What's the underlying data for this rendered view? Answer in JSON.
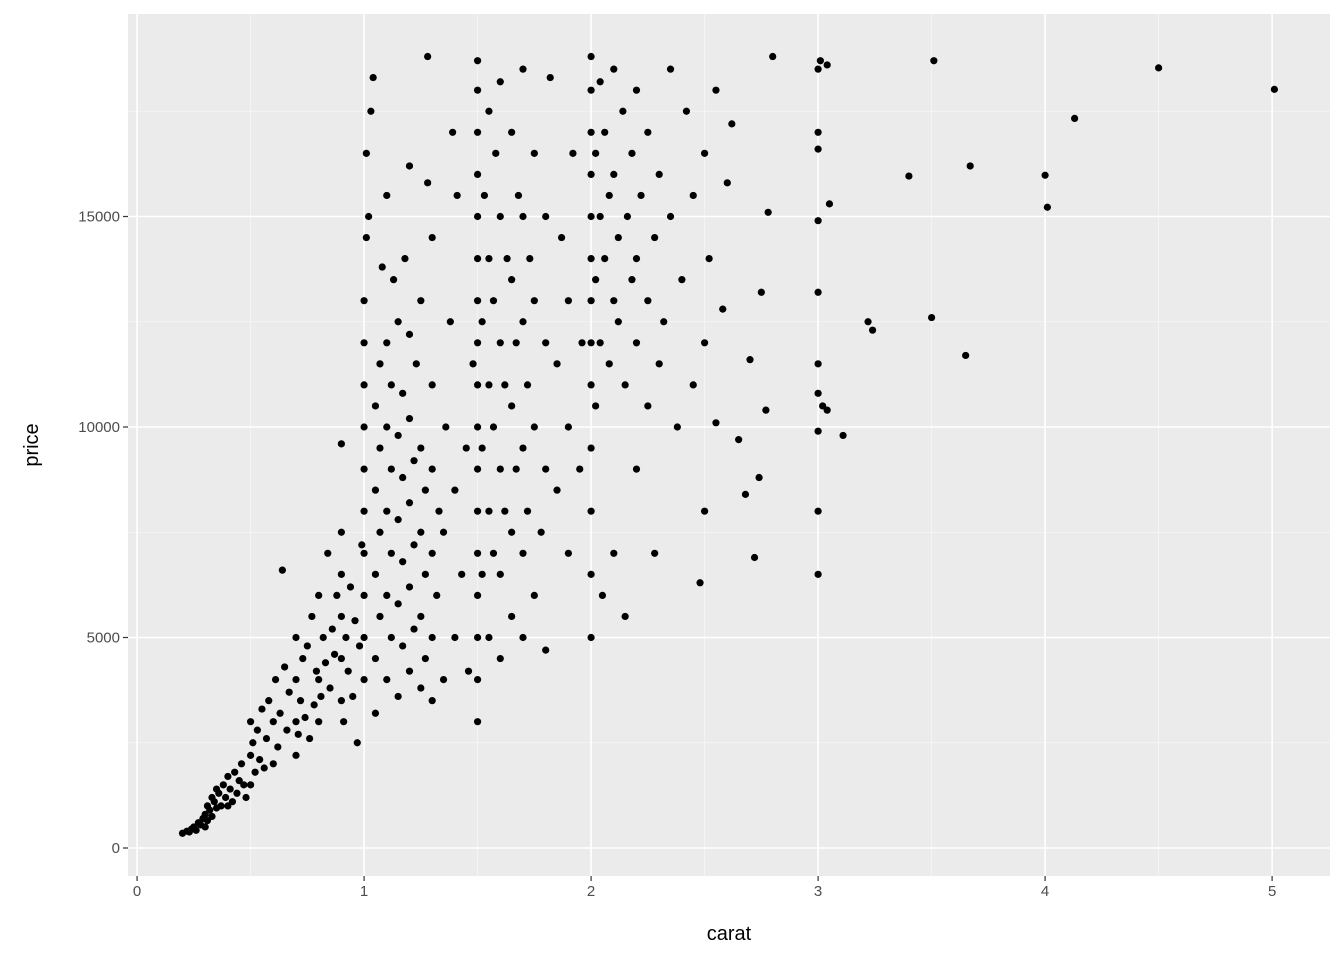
{
  "chart_data": {
    "type": "scatter",
    "title": "",
    "xlabel": "carat",
    "ylabel": "price",
    "xlim": [
      -0.04,
      5.255
    ],
    "ylim": [
      -665,
      19810
    ],
    "x_ticks": [
      0,
      1,
      2,
      3,
      4,
      5
    ],
    "x_tick_labels": [
      "0",
      "1",
      "2",
      "3",
      "4",
      "5"
    ],
    "y_ticks": [
      0,
      5000,
      10000,
      15000
    ],
    "y_tick_labels": [
      "0",
      "5000",
      "10000",
      "15000"
    ],
    "grid": true,
    "colors": {
      "panel": "#EBEBEB",
      "grid": "#FFFFFF",
      "point": "#000000"
    },
    "points": [
      [
        0.2,
        350
      ],
      [
        0.22,
        400
      ],
      [
        0.23,
        380
      ],
      [
        0.24,
        450
      ],
      [
        0.25,
        500
      ],
      [
        0.26,
        420
      ],
      [
        0.27,
        600
      ],
      [
        0.28,
        550
      ],
      [
        0.29,
        700
      ],
      [
        0.3,
        500
      ],
      [
        0.3,
        800
      ],
      [
        0.31,
        650
      ],
      [
        0.31,
        1000
      ],
      [
        0.32,
        900
      ],
      [
        0.33,
        750
      ],
      [
        0.33,
        1200
      ],
      [
        0.34,
        1100
      ],
      [
        0.35,
        950
      ],
      [
        0.35,
        1400
      ],
      [
        0.36,
        1300
      ],
      [
        0.37,
        1000
      ],
      [
        0.38,
        1500
      ],
      [
        0.39,
        1200
      ],
      [
        0.4,
        1000
      ],
      [
        0.4,
        1700
      ],
      [
        0.41,
        1400
      ],
      [
        0.42,
        1100
      ],
      [
        0.43,
        1800
      ],
      [
        0.44,
        1300
      ],
      [
        0.45,
        1600
      ],
      [
        0.46,
        2000
      ],
      [
        0.47,
        1500
      ],
      [
        0.48,
        1200
      ],
      [
        0.5,
        1500
      ],
      [
        0.5,
        2200
      ],
      [
        0.5,
        3000
      ],
      [
        0.51,
        2500
      ],
      [
        0.52,
        1800
      ],
      [
        0.53,
        2800
      ],
      [
        0.54,
        2100
      ],
      [
        0.55,
        3300
      ],
      [
        0.56,
        1900
      ],
      [
        0.57,
        2600
      ],
      [
        0.58,
        3500
      ],
      [
        0.6,
        2000
      ],
      [
        0.6,
        3000
      ],
      [
        0.61,
        4000
      ],
      [
        0.62,
        2400
      ],
      [
        0.63,
        3200
      ],
      [
        0.64,
        6600
      ],
      [
        0.65,
        4300
      ],
      [
        0.66,
        2800
      ],
      [
        0.67,
        3700
      ],
      [
        0.7,
        2200
      ],
      [
        0.7,
        3000
      ],
      [
        0.7,
        4000
      ],
      [
        0.7,
        5000
      ],
      [
        0.71,
        2700
      ],
      [
        0.72,
        3500
      ],
      [
        0.73,
        4500
      ],
      [
        0.74,
        3100
      ],
      [
        0.75,
        4800
      ],
      [
        0.76,
        2600
      ],
      [
        0.77,
        5500
      ],
      [
        0.78,
        3400
      ],
      [
        0.79,
        4200
      ],
      [
        0.8,
        3000
      ],
      [
        0.8,
        4000
      ],
      [
        0.8,
        6000
      ],
      [
        0.81,
        3600
      ],
      [
        0.82,
        5000
      ],
      [
        0.83,
        4400
      ],
      [
        0.84,
        7000
      ],
      [
        0.85,
        3800
      ],
      [
        0.86,
        5200
      ],
      [
        0.87,
        4600
      ],
      [
        0.88,
        6000
      ],
      [
        0.9,
        3500
      ],
      [
        0.9,
        4500
      ],
      [
        0.9,
        5500
      ],
      [
        0.9,
        6500
      ],
      [
        0.9,
        7500
      ],
      [
        0.9,
        9600
      ],
      [
        0.91,
        3000
      ],
      [
        0.92,
        5000
      ],
      [
        0.93,
        4200
      ],
      [
        0.94,
        6200
      ],
      [
        0.95,
        3600
      ],
      [
        0.96,
        5400
      ],
      [
        0.97,
        2500
      ],
      [
        0.98,
        4800
      ],
      [
        0.99,
        7200
      ],
      [
        1.0,
        4000
      ],
      [
        1.0,
        5000
      ],
      [
        1.0,
        6000
      ],
      [
        1.0,
        7000
      ],
      [
        1.0,
        8000
      ],
      [
        1.0,
        9000
      ],
      [
        1.0,
        10000
      ],
      [
        1.0,
        11000
      ],
      [
        1.0,
        12000
      ],
      [
        1.0,
        13000
      ],
      [
        1.01,
        14500
      ],
      [
        1.01,
        16500
      ],
      [
        1.02,
        15000
      ],
      [
        1.03,
        17500
      ],
      [
        1.04,
        18300
      ],
      [
        1.05,
        3200
      ],
      [
        1.05,
        4500
      ],
      [
        1.05,
        6500
      ],
      [
        1.05,
        8500
      ],
      [
        1.05,
        10500
      ],
      [
        1.07,
        5500
      ],
      [
        1.07,
        7500
      ],
      [
        1.07,
        9500
      ],
      [
        1.07,
        11500
      ],
      [
        1.08,
        13800
      ],
      [
        1.1,
        4000
      ],
      [
        1.1,
        6000
      ],
      [
        1.1,
        8000
      ],
      [
        1.1,
        10000
      ],
      [
        1.1,
        12000
      ],
      [
        1.1,
        15500
      ],
      [
        1.12,
        5000
      ],
      [
        1.12,
        7000
      ],
      [
        1.12,
        9000
      ],
      [
        1.12,
        11000
      ],
      [
        1.13,
        13500
      ],
      [
        1.15,
        3600
      ],
      [
        1.15,
        5800
      ],
      [
        1.15,
        7800
      ],
      [
        1.15,
        9800
      ],
      [
        1.15,
        12500
      ],
      [
        1.17,
        4800
      ],
      [
        1.17,
        6800
      ],
      [
        1.17,
        8800
      ],
      [
        1.17,
        10800
      ],
      [
        1.18,
        14000
      ],
      [
        1.2,
        4200
      ],
      [
        1.2,
        6200
      ],
      [
        1.2,
        8200
      ],
      [
        1.2,
        10200
      ],
      [
        1.2,
        12200
      ],
      [
        1.2,
        16200
      ],
      [
        1.22,
        5200
      ],
      [
        1.22,
        7200
      ],
      [
        1.22,
        9200
      ],
      [
        1.23,
        11500
      ],
      [
        1.25,
        3800
      ],
      [
        1.25,
        5500
      ],
      [
        1.25,
        7500
      ],
      [
        1.25,
        9500
      ],
      [
        1.25,
        13000
      ],
      [
        1.27,
        4500
      ],
      [
        1.27,
        6500
      ],
      [
        1.27,
        8500
      ],
      [
        1.28,
        15800
      ],
      [
        1.3,
        3500
      ],
      [
        1.3,
        5000
      ],
      [
        1.3,
        7000
      ],
      [
        1.3,
        9000
      ],
      [
        1.3,
        11000
      ],
      [
        1.3,
        14500
      ],
      [
        1.32,
        6000
      ],
      [
        1.33,
        8000
      ],
      [
        1.35,
        4000
      ],
      [
        1.35,
        7500
      ],
      [
        1.36,
        10000
      ],
      [
        1.38,
        12500
      ],
      [
        1.4,
        5000
      ],
      [
        1.4,
        8500
      ],
      [
        1.41,
        15500
      ],
      [
        1.43,
        6500
      ],
      [
        1.45,
        9500
      ],
      [
        1.46,
        4200
      ],
      [
        1.48,
        11500
      ],
      [
        1.39,
        17000
      ],
      [
        1.28,
        18800
      ],
      [
        1.5,
        3000
      ],
      [
        1.5,
        4000
      ],
      [
        1.5,
        5000
      ],
      [
        1.5,
        6000
      ],
      [
        1.5,
        7000
      ],
      [
        1.5,
        8000
      ],
      [
        1.5,
        9000
      ],
      [
        1.5,
        10000
      ],
      [
        1.5,
        11000
      ],
      [
        1.5,
        12000
      ],
      [
        1.5,
        13000
      ],
      [
        1.5,
        14000
      ],
      [
        1.5,
        15000
      ],
      [
        1.5,
        16000
      ],
      [
        1.5,
        17000
      ],
      [
        1.5,
        18000
      ],
      [
        1.5,
        18700
      ],
      [
        1.52,
        6500
      ],
      [
        1.52,
        9500
      ],
      [
        1.52,
        12500
      ],
      [
        1.53,
        15500
      ],
      [
        1.55,
        5000
      ],
      [
        1.55,
        8000
      ],
      [
        1.55,
        11000
      ],
      [
        1.55,
        14000
      ],
      [
        1.55,
        17500
      ],
      [
        1.57,
        7000
      ],
      [
        1.57,
        10000
      ],
      [
        1.57,
        13000
      ],
      [
        1.58,
        16500
      ],
      [
        1.6,
        4500
      ],
      [
        1.6,
        6500
      ],
      [
        1.6,
        9000
      ],
      [
        1.6,
        12000
      ],
      [
        1.6,
        15000
      ],
      [
        1.6,
        18200
      ],
      [
        1.62,
        8000
      ],
      [
        1.62,
        11000
      ],
      [
        1.63,
        14000
      ],
      [
        1.65,
        5500
      ],
      [
        1.65,
        7500
      ],
      [
        1.65,
        10500
      ],
      [
        1.65,
        13500
      ],
      [
        1.65,
        17000
      ],
      [
        1.67,
        9000
      ],
      [
        1.67,
        12000
      ],
      [
        1.68,
        15500
      ],
      [
        1.7,
        5000
      ],
      [
        1.7,
        7000
      ],
      [
        1.7,
        9500
      ],
      [
        1.7,
        12500
      ],
      [
        1.7,
        15000
      ],
      [
        1.7,
        18500
      ],
      [
        1.72,
        8000
      ],
      [
        1.72,
        11000
      ],
      [
        1.73,
        14000
      ],
      [
        1.75,
        6000
      ],
      [
        1.75,
        10000
      ],
      [
        1.75,
        13000
      ],
      [
        1.75,
        16500
      ],
      [
        1.78,
        7500
      ],
      [
        1.8,
        9000
      ],
      [
        1.8,
        12000
      ],
      [
        1.8,
        15000
      ],
      [
        1.82,
        18300
      ],
      [
        1.85,
        8500
      ],
      [
        1.85,
        11500
      ],
      [
        1.87,
        14500
      ],
      [
        1.9,
        7000
      ],
      [
        1.9,
        10000
      ],
      [
        1.9,
        13000
      ],
      [
        1.92,
        16500
      ],
      [
        1.95,
        9000
      ],
      [
        1.96,
        12000
      ],
      [
        1.8,
        4700
      ],
      [
        2.0,
        5000
      ],
      [
        2.0,
        6500
      ],
      [
        2.0,
        8000
      ],
      [
        2.0,
        9500
      ],
      [
        2.0,
        11000
      ],
      [
        2.0,
        12000
      ],
      [
        2.0,
        13000
      ],
      [
        2.0,
        14000
      ],
      [
        2.0,
        15000
      ],
      [
        2.0,
        16000
      ],
      [
        2.0,
        17000
      ],
      [
        2.0,
        18000
      ],
      [
        2.0,
        18800
      ],
      [
        2.02,
        10500
      ],
      [
        2.02,
        13500
      ],
      [
        2.02,
        16500
      ],
      [
        2.04,
        12000
      ],
      [
        2.04,
        15000
      ],
      [
        2.04,
        18200
      ],
      [
        2.05,
        6000
      ],
      [
        2.06,
        14000
      ],
      [
        2.06,
        17000
      ],
      [
        2.08,
        11500
      ],
      [
        2.08,
        15500
      ],
      [
        2.1,
        7000
      ],
      [
        2.1,
        13000
      ],
      [
        2.1,
        16000
      ],
      [
        2.1,
        18500
      ],
      [
        2.12,
        12500
      ],
      [
        2.12,
        14500
      ],
      [
        2.14,
        17500
      ],
      [
        2.15,
        5500
      ],
      [
        2.15,
        11000
      ],
      [
        2.16,
        15000
      ],
      [
        2.18,
        13500
      ],
      [
        2.18,
        16500
      ],
      [
        2.2,
        9000
      ],
      [
        2.2,
        12000
      ],
      [
        2.2,
        14000
      ],
      [
        2.2,
        18000
      ],
      [
        2.22,
        15500
      ],
      [
        2.25,
        10500
      ],
      [
        2.25,
        13000
      ],
      [
        2.25,
        17000
      ],
      [
        2.28,
        7000
      ],
      [
        2.28,
        14500
      ],
      [
        2.3,
        11500
      ],
      [
        2.3,
        16000
      ],
      [
        2.32,
        12500
      ],
      [
        2.35,
        15000
      ],
      [
        2.35,
        18500
      ],
      [
        2.38,
        10000
      ],
      [
        2.4,
        13500
      ],
      [
        2.42,
        17500
      ],
      [
        2.45,
        11000
      ],
      [
        2.45,
        15500
      ],
      [
        2.48,
        6300
      ],
      [
        2.5,
        12000
      ],
      [
        2.5,
        16500
      ],
      [
        2.5,
        8000
      ],
      [
        2.52,
        14000
      ],
      [
        2.55,
        10100
      ],
      [
        2.55,
        18000
      ],
      [
        2.58,
        12800
      ],
      [
        2.6,
        15800
      ],
      [
        2.62,
        17200
      ],
      [
        2.65,
        9700
      ],
      [
        2.68,
        8400
      ],
      [
        2.7,
        11600
      ],
      [
        2.72,
        6900
      ],
      [
        2.75,
        13200
      ],
      [
        2.77,
        10400
      ],
      [
        2.74,
        8800
      ],
      [
        2.8,
        18800
      ],
      [
        2.78,
        15100
      ],
      [
        3.0,
        6500
      ],
      [
        3.0,
        8000
      ],
      [
        3.0,
        9900
      ],
      [
        3.0,
        10800
      ],
      [
        3.0,
        11500
      ],
      [
        3.0,
        13200
      ],
      [
        3.0,
        14900
      ],
      [
        3.0,
        16600
      ],
      [
        3.0,
        17000
      ],
      [
        3.0,
        18500
      ],
      [
        3.01,
        18700
      ],
      [
        3.02,
        10500
      ],
      [
        3.04,
        10400
      ],
      [
        3.04,
        18600
      ],
      [
        3.05,
        15300
      ],
      [
        3.11,
        9800
      ],
      [
        3.22,
        12500
      ],
      [
        3.24,
        12300
      ],
      [
        3.4,
        15960
      ],
      [
        3.5,
        12600
      ],
      [
        3.51,
        18700
      ],
      [
        3.65,
        11700
      ],
      [
        3.67,
        16200
      ],
      [
        4.0,
        15980
      ],
      [
        4.01,
        15220
      ],
      [
        4.13,
        17330
      ],
      [
        4.5,
        18530
      ],
      [
        5.01,
        18020
      ]
    ]
  }
}
